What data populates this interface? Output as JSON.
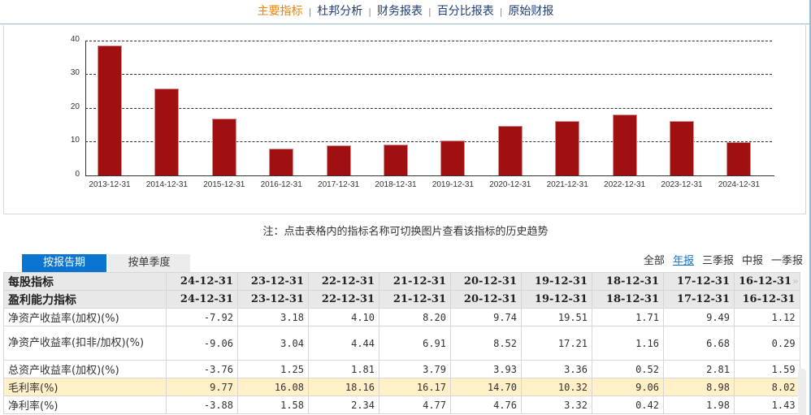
{
  "nav": {
    "items": [
      {
        "label": "主要指标",
        "active": true
      },
      {
        "label": "杜邦分析",
        "active": false
      },
      {
        "label": "财务报表",
        "active": false
      },
      {
        "label": "百分比报表",
        "active": false
      },
      {
        "label": "原始财报",
        "active": false
      }
    ],
    "separator": "|"
  },
  "chart_data": {
    "type": "bar",
    "title": "",
    "metric": "毛利率(%)",
    "categories": [
      "2013-12-31",
      "2014-12-31",
      "2015-12-31",
      "2016-12-31",
      "2017-12-31",
      "2018-12-31",
      "2019-12-31",
      "2020-12-31",
      "2021-12-31",
      "2022-12-31",
      "2023-12-31",
      "2024-12-31"
    ],
    "values": [
      38.6,
      25.8,
      16.9,
      8.02,
      8.98,
      9.06,
      10.32,
      14.7,
      16.17,
      18.16,
      16.08,
      9.77
    ],
    "yticks": [
      "0",
      "10",
      "20",
      "30",
      "40"
    ],
    "ylim": [
      0,
      40
    ],
    "xlabel": "",
    "ylabel": "",
    "grid": "horizontal dashed",
    "bar_color": "#a01010"
  },
  "note": "注：点击表格内的指标名称可切换图片查看该指标的历史趋势",
  "tabs": [
    {
      "label": "按报告期",
      "active": true
    },
    {
      "label": "按单季度",
      "active": false
    }
  ],
  "filters": [
    {
      "label": "全部",
      "active": false
    },
    {
      "label": "年报",
      "active": true
    },
    {
      "label": "三季报",
      "active": false
    },
    {
      "label": "中报",
      "active": false
    },
    {
      "label": "一季报",
      "active": false
    }
  ],
  "table": {
    "more_icon": "»",
    "header_rows": [
      {
        "label": "每股指标",
        "cols": [
          "24-12-31",
          "23-12-31",
          "22-12-31",
          "21-12-31",
          "20-12-31",
          "19-12-31",
          "18-12-31",
          "17-12-31",
          "16-12-31"
        ]
      },
      {
        "label": "盈利能力指标",
        "cols": [
          "24-12-31",
          "23-12-31",
          "22-12-31",
          "21-12-31",
          "20-12-31",
          "19-12-31",
          "18-12-31",
          "17-12-31",
          "16-12-31"
        ]
      }
    ],
    "rows": [
      {
        "label": "净资产收益率(加权)(%)",
        "values": [
          "-7.92",
          "3.18",
          "4.10",
          "8.20",
          "9.74",
          "19.51",
          "1.71",
          "9.49",
          "1.12"
        ]
      },
      {
        "label": "净资产收益率(扣非/加权)(%)",
        "values": [
          "-9.06",
          "3.04",
          "4.44",
          "6.91",
          "8.52",
          "17.21",
          "1.16",
          "6.68",
          "0.29"
        ]
      },
      {
        "label": "总资产收益率(加权)(%)",
        "values": [
          "-3.76",
          "1.25",
          "1.81",
          "3.79",
          "3.93",
          "3.36",
          "0.52",
          "2.81",
          "1.59"
        ]
      },
      {
        "label": "毛利率(%)",
        "values": [
          "9.77",
          "16.08",
          "18.16",
          "16.17",
          "14.70",
          "10.32",
          "9.06",
          "8.98",
          "8.02"
        ],
        "highlighted": true
      },
      {
        "label": "净利率(%)",
        "values": [
          "-3.88",
          "1.58",
          "2.34",
          "4.77",
          "4.76",
          "3.32",
          "0.42",
          "1.98",
          "1.43"
        ]
      }
    ]
  }
}
